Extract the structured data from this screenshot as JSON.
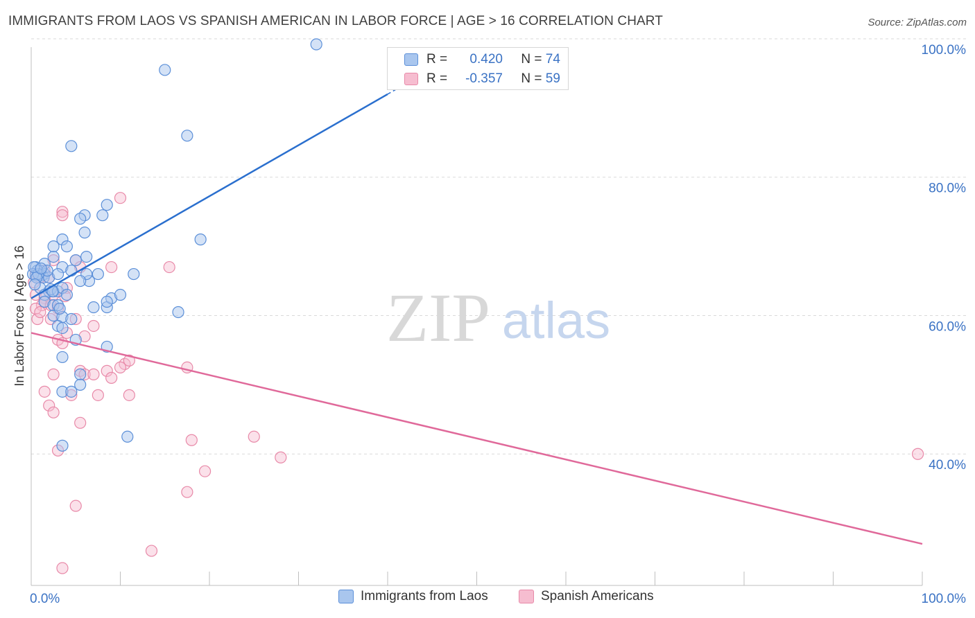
{
  "header": {
    "title": "IMMIGRANTS FROM LAOS VS SPANISH AMERICAN IN LABOR FORCE | AGE > 16 CORRELATION CHART",
    "source": "Source: ZipAtlas.com"
  },
  "watermark": {
    "zip": "ZIP",
    "atlas": "atlas"
  },
  "stats_legend": {
    "series1": {
      "r_label": "R =",
      "r_value": "0.420",
      "n_label": "N =",
      "n_value": "74"
    },
    "series2": {
      "r_label": "R =",
      "r_value": "-0.357",
      "n_label": "N =",
      "n_value": "59"
    }
  },
  "colors": {
    "blue_fill": "#a9c6ee",
    "blue_stroke": "#5b8fd8",
    "blue_line": "#2a6fce",
    "pink_fill": "#f6bdd0",
    "pink_stroke": "#e889a8",
    "pink_line": "#e0699a",
    "axis_text": "#3a72c4",
    "grid": "#d9d9d9"
  },
  "chart_data": {
    "type": "scatter",
    "title": "IMMIGRANTS FROM LAOS VS SPANISH AMERICAN IN LABOR FORCE | AGE > 16 CORRELATION CHART",
    "xlabel": "",
    "ylabel": "In Labor Force | Age > 16",
    "xlim": [
      0,
      100
    ],
    "ylim": [
      21,
      100
    ],
    "x_tick_labels": [
      "0.0%",
      "100.0%"
    ],
    "y_ticks": [
      40,
      60,
      80,
      100
    ],
    "y_tick_labels": [
      "40.0%",
      "60.0%",
      "80.0%",
      "100.0%"
    ],
    "grid": "horizontal dashed",
    "legend_position": "bottom-center",
    "series": [
      {
        "name": "Immigrants from Laos",
        "color": "#5b8fd8",
        "trend": {
          "x": [
            0,
            40
          ],
          "y": [
            62.5,
            92
          ]
        },
        "trend_dashed": {
          "x": [
            40,
            46
          ],
          "y": [
            92,
            96.4
          ]
        },
        "points": [
          [
            32,
            99.2
          ],
          [
            15,
            95.5
          ],
          [
            17.5,
            86
          ],
          [
            4.5,
            84.5
          ],
          [
            8.5,
            76
          ],
          [
            8,
            74.5
          ],
          [
            6,
            74.5
          ],
          [
            5.5,
            74
          ],
          [
            6,
            72
          ],
          [
            19,
            71
          ],
          [
            3.5,
            71
          ],
          [
            4,
            70
          ],
          [
            2.5,
            70
          ],
          [
            6.2,
            68.5
          ],
          [
            5,
            68
          ],
          [
            2.5,
            68.5
          ],
          [
            1.5,
            67.5
          ],
          [
            3.5,
            67
          ],
          [
            0.5,
            67
          ],
          [
            1,
            66.5
          ],
          [
            1.5,
            66
          ],
          [
            0.7,
            66.5
          ],
          [
            1.2,
            65.8
          ],
          [
            1.4,
            65.5
          ],
          [
            0.5,
            65.8
          ],
          [
            2,
            65.5
          ],
          [
            3,
            66
          ],
          [
            7.5,
            66
          ],
          [
            11.5,
            66
          ],
          [
            6.5,
            65
          ],
          [
            4.5,
            66.5
          ],
          [
            6.2,
            66
          ],
          [
            5.5,
            65
          ],
          [
            1,
            64
          ],
          [
            2,
            63.5
          ],
          [
            2.5,
            63.5
          ],
          [
            1.5,
            63
          ],
          [
            2.2,
            63.8
          ],
          [
            3,
            63.5
          ],
          [
            3.5,
            64
          ],
          [
            4,
            63
          ],
          [
            1.5,
            62
          ],
          [
            2.5,
            61.5
          ],
          [
            3,
            61.5
          ],
          [
            7,
            61.2
          ],
          [
            8.5,
            61.2
          ],
          [
            9,
            62.5
          ],
          [
            10,
            63
          ],
          [
            8.5,
            62
          ],
          [
            16.5,
            60.5
          ],
          [
            2.5,
            60
          ],
          [
            3.5,
            59.8
          ],
          [
            4.5,
            59.5
          ],
          [
            3,
            58.5
          ],
          [
            3.5,
            58.2
          ],
          [
            5,
            56.5
          ],
          [
            8.5,
            55.5
          ],
          [
            3.5,
            54
          ],
          [
            5.5,
            51.5
          ],
          [
            5.5,
            50
          ],
          [
            3.5,
            49
          ],
          [
            4.5,
            49
          ],
          [
            10.8,
            42.5
          ],
          [
            3.5,
            41.2
          ],
          [
            0.2,
            66
          ],
          [
            0.8,
            66
          ],
          [
            1.8,
            66.5
          ],
          [
            0.3,
            67
          ],
          [
            0.6,
            65.5
          ],
          [
            1.1,
            66.8
          ],
          [
            2.4,
            63.5
          ],
          [
            3.2,
            61
          ],
          [
            0.4,
            64.5
          ]
        ]
      },
      {
        "name": "Spanish Americans",
        "color": "#e889a8",
        "trend": {
          "x": [
            0,
            100
          ],
          "y": [
            57.5,
            27
          ]
        },
        "points": [
          [
            10,
            77
          ],
          [
            3.5,
            75
          ],
          [
            3.5,
            74.5
          ],
          [
            2.5,
            68
          ],
          [
            5,
            68
          ],
          [
            15.5,
            67
          ],
          [
            9,
            67
          ],
          [
            5.5,
            67
          ],
          [
            1.5,
            66.5
          ],
          [
            0.5,
            66
          ],
          [
            1,
            65.5
          ],
          [
            2,
            65.5
          ],
          [
            4,
            64
          ],
          [
            2.5,
            63
          ],
          [
            0.5,
            63
          ],
          [
            1.5,
            62.5
          ],
          [
            1.5,
            62
          ],
          [
            1.2,
            61.5
          ],
          [
            0.5,
            61
          ],
          [
            2.2,
            61.5
          ],
          [
            3,
            61
          ],
          [
            0.7,
            59.5
          ],
          [
            2.2,
            59.5
          ],
          [
            5,
            59.5
          ],
          [
            7,
            58.5
          ],
          [
            4,
            57.5
          ],
          [
            6,
            57
          ],
          [
            3,
            56.5
          ],
          [
            3.5,
            56
          ],
          [
            10.5,
            53
          ],
          [
            10,
            52.5
          ],
          [
            11,
            53.5
          ],
          [
            8.5,
            52
          ],
          [
            17.5,
            52.5
          ],
          [
            5.5,
            52
          ],
          [
            6,
            51.5
          ],
          [
            7,
            51.5
          ],
          [
            9,
            51
          ],
          [
            2.5,
            51.5
          ],
          [
            1.5,
            49
          ],
          [
            7.5,
            48.5
          ],
          [
            11,
            48.5
          ],
          [
            4.5,
            48.5
          ],
          [
            2,
            47
          ],
          [
            2.5,
            46
          ],
          [
            5.5,
            44.5
          ],
          [
            18,
            42
          ],
          [
            25,
            42.5
          ],
          [
            3,
            40.5
          ],
          [
            28,
            39.5
          ],
          [
            19.5,
            37.5
          ],
          [
            17.5,
            34.5
          ],
          [
            5,
            32.5
          ],
          [
            13.5,
            26
          ],
          [
            3.5,
            23.5
          ],
          [
            99.5,
            40
          ],
          [
            1,
            60.5
          ],
          [
            0.3,
            64.8
          ],
          [
            3.8,
            62.8
          ]
        ]
      }
    ]
  },
  "legend": {
    "items": [
      {
        "label": "Immigrants from Laos"
      },
      {
        "label": "Spanish Americans"
      }
    ]
  }
}
